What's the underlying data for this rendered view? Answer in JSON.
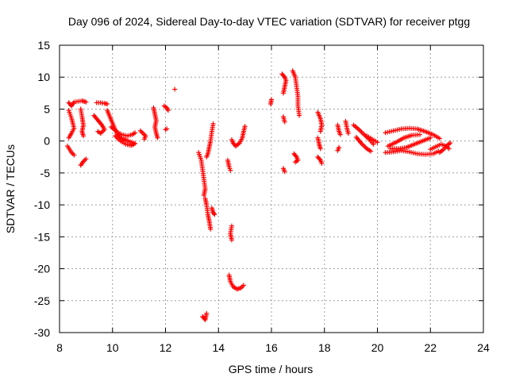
{
  "chart_data": {
    "type": "scatter",
    "title": "Day 096 of 2024, Sidereal Day-to-day VTEC variation (SDTVAR) for receiver ptgg",
    "xlabel": "GPS time / hours",
    "ylabel": "SDTVAR / TECUs",
    "xlim": [
      8,
      24
    ],
    "ylim": [
      -30,
      15
    ],
    "x_ticks": [
      "8",
      "10",
      "12",
      "14",
      "16",
      "18",
      "20",
      "22",
      "24"
    ],
    "y_ticks": [
      "15",
      "10",
      "5",
      "0",
      "-5",
      "-10",
      "-15",
      "-20",
      "-25",
      "-30"
    ],
    "grid": true,
    "marker": "+",
    "marker_color": "#ff0000",
    "series": [
      {
        "name": "SDTVAR",
        "segments": [
          [
            [
              8.35,
              6.0
            ],
            [
              8.45,
              5.5
            ],
            [
              8.55,
              6.1
            ],
            [
              8.7,
              6.2
            ],
            [
              8.85,
              6.3
            ],
            [
              9.0,
              6.1
            ]
          ],
          [
            [
              8.35,
              4.8
            ],
            [
              8.4,
              4.2
            ],
            [
              8.45,
              3.6
            ],
            [
              8.5,
              2.8
            ],
            [
              8.55,
              2.0
            ],
            [
              8.45,
              1.2
            ],
            [
              8.35,
              0.5
            ]
          ],
          [
            [
              8.3,
              -0.8
            ],
            [
              8.38,
              -1.3
            ],
            [
              8.45,
              -1.8
            ],
            [
              8.55,
              -2.2
            ]
          ],
          [
            [
              8.8,
              -3.8
            ],
            [
              8.9,
              -3.2
            ],
            [
              9.0,
              -2.8
            ]
          ],
          [
            [
              8.8,
              5.0
            ],
            [
              8.85,
              3.8
            ],
            [
              8.9,
              2.5
            ],
            [
              8.85,
              1.5
            ],
            [
              8.9,
              0.8
            ]
          ],
          [
            [
              9.4,
              6.0
            ],
            [
              9.55,
              6.0
            ],
            [
              9.7,
              5.9
            ],
            [
              9.8,
              5.8
            ]
          ],
          [
            [
              9.3,
              4.0
            ],
            [
              9.4,
              3.5
            ],
            [
              9.5,
              3.0
            ],
            [
              9.6,
              2.5
            ],
            [
              9.7,
              1.8
            ],
            [
              9.55,
              1.2
            ],
            [
              9.45,
              1.5
            ]
          ],
          [
            [
              9.8,
              4.8
            ],
            [
              9.9,
              3.8
            ],
            [
              10.0,
              2.8
            ],
            [
              10.1,
              1.8
            ],
            [
              10.2,
              1.0
            ],
            [
              10.3,
              0.5
            ],
            [
              10.45,
              0.2
            ],
            [
              10.6,
              0.0
            ],
            [
              10.8,
              -0.3
            ]
          ],
          [
            [
              9.95,
              2.2
            ],
            [
              10.15,
              1.5
            ],
            [
              10.35,
              1.0
            ],
            [
              10.55,
              0.8
            ],
            [
              10.75,
              1.0
            ],
            [
              10.85,
              1.3
            ]
          ],
          [
            [
              10.1,
              0.8
            ],
            [
              10.3,
              0.0
            ],
            [
              10.5,
              -0.5
            ],
            [
              10.7,
              -0.7
            ],
            [
              10.85,
              -0.4
            ]
          ],
          [
            [
              11.05,
              1.6
            ],
            [
              11.15,
              1.2
            ],
            [
              11.25,
              0.8
            ],
            [
              11.2,
              0.3
            ]
          ],
          [
            [
              11.55,
              5.2
            ],
            [
              11.6,
              4.2
            ],
            [
              11.65,
              3.2
            ],
            [
              11.6,
              2.2
            ],
            [
              11.65,
              1.2
            ],
            [
              11.7,
              0.5
            ]
          ],
          [
            [
              11.95,
              5.5
            ],
            [
              12.05,
              5.2
            ],
            [
              12.1,
              4.8
            ]
          ],
          [
            [
              12.0,
              1.8
            ],
            [
              12.05,
              1.9
            ]
          ],
          [
            [
              12.35,
              8.1
            ]
          ],
          [
            [
              13.25,
              -1.8
            ],
            [
              13.35,
              -3.0
            ],
            [
              13.4,
              -4.5
            ],
            [
              13.45,
              -6.0
            ],
            [
              13.5,
              -7.5
            ],
            [
              13.45,
              -8.5
            ]
          ],
          [
            [
              13.5,
              -9.0
            ],
            [
              13.55,
              -10.0
            ],
            [
              13.6,
              -11.5
            ],
            [
              13.65,
              -12.5
            ],
            [
              13.7,
              -13.8
            ]
          ],
          [
            [
              13.55,
              -2.5
            ],
            [
              13.6,
              -2.0
            ],
            [
              13.65,
              -1.0
            ],
            [
              13.7,
              0.0
            ],
            [
              13.75,
              1.5
            ],
            [
              13.8,
              2.7
            ]
          ],
          [
            [
              13.75,
              -10.5
            ],
            [
              13.8,
              -11.2
            ],
            [
              13.85,
              -11.5
            ]
          ],
          [
            [
              13.4,
              -27.5
            ],
            [
              13.5,
              -28.0
            ],
            [
              13.55,
              -27.0
            ]
          ],
          [
            [
              14.35,
              -3.0
            ],
            [
              14.4,
              -4.0
            ],
            [
              14.45,
              -4.6
            ]
          ],
          [
            [
              14.5,
              0.2
            ],
            [
              14.55,
              -0.3
            ],
            [
              14.65,
              -0.8
            ],
            [
              14.8,
              -0.3
            ],
            [
              14.9,
              0.5
            ],
            [
              14.95,
              1.5
            ],
            [
              15.0,
              2.3
            ]
          ],
          [
            [
              14.5,
              -13.3
            ],
            [
              14.45,
              -14.5
            ],
            [
              14.5,
              -15.5
            ]
          ],
          [
            [
              14.4,
              -21.0
            ],
            [
              14.45,
              -22.0
            ],
            [
              14.55,
              -22.8
            ],
            [
              14.7,
              -23.2
            ],
            [
              14.85,
              -23.0
            ],
            [
              14.95,
              -22.6
            ]
          ],
          [
            [
              16.0,
              6.5
            ],
            [
              15.97,
              5.8
            ]
          ],
          [
            [
              16.4,
              10.5
            ],
            [
              16.5,
              10.0
            ],
            [
              16.55,
              9.5
            ],
            [
              16.5,
              8.5
            ],
            [
              16.45,
              7.5
            ]
          ],
          [
            [
              16.45,
              3.8
            ],
            [
              16.5,
              3.0
            ]
          ],
          [
            [
              16.45,
              -4.3
            ],
            [
              16.5,
              -4.8
            ]
          ],
          [
            [
              16.8,
              11.0
            ],
            [
              16.9,
              10.0
            ],
            [
              16.95,
              8.5
            ],
            [
              17.0,
              7.0
            ],
            [
              17.0,
              5.5
            ],
            [
              17.05,
              4.0
            ]
          ],
          [
            [
              16.85,
              -2.0
            ],
            [
              16.95,
              -2.5
            ],
            [
              17.0,
              -3.0
            ],
            [
              16.9,
              -3.3
            ]
          ],
          [
            [
              17.75,
              4.5
            ],
            [
              17.85,
              3.5
            ],
            [
              17.9,
              2.5
            ],
            [
              17.85,
              1.5
            ]
          ],
          [
            [
              17.75,
              0.5
            ],
            [
              17.8,
              -0.5
            ],
            [
              17.85,
              -1.2
            ]
          ],
          [
            [
              17.75,
              -2.5
            ],
            [
              17.85,
              -3.0
            ],
            [
              17.9,
              -3.5
            ]
          ],
          [
            [
              18.5,
              2.5
            ],
            [
              18.55,
              1.5
            ],
            [
              18.6,
              1.0
            ]
          ],
          [
            [
              18.55,
              -1.0
            ],
            [
              18.5,
              -1.5
            ]
          ],
          [
            [
              18.8,
              3.1
            ],
            [
              18.85,
              2.0
            ],
            [
              18.9,
              1.2
            ]
          ],
          [
            [
              19.1,
              2.5
            ],
            [
              19.3,
              1.8
            ],
            [
              19.5,
              1.0
            ],
            [
              19.7,
              0.2
            ],
            [
              19.85,
              -0.5
            ]
          ],
          [
            [
              19.2,
              0.6
            ],
            [
              19.4,
              -0.4
            ],
            [
              19.6,
              -1.2
            ],
            [
              19.75,
              -1.6
            ]
          ],
          [
            [
              19.6,
              0.8
            ],
            [
              19.8,
              0.3
            ],
            [
              20.0,
              -0.2
            ]
          ],
          [
            [
              20.3,
              1.3
            ],
            [
              20.6,
              1.6
            ],
            [
              20.9,
              1.9
            ],
            [
              21.2,
              2.0
            ],
            [
              21.5,
              1.9
            ],
            [
              21.8,
              1.5
            ],
            [
              22.1,
              1.0
            ],
            [
              22.35,
              0.4
            ]
          ],
          [
            [
              20.4,
              -0.8
            ],
            [
              20.7,
              -0.2
            ],
            [
              21.0,
              0.5
            ],
            [
              21.3,
              0.9
            ],
            [
              21.6,
              1.0
            ]
          ],
          [
            [
              20.5,
              -1.2
            ],
            [
              20.8,
              -1.2
            ],
            [
              21.1,
              -1.0
            ],
            [
              21.4,
              -0.5
            ],
            [
              21.7,
              0.0
            ],
            [
              22.0,
              0.5
            ]
          ],
          [
            [
              20.3,
              -1.8
            ],
            [
              20.6,
              -1.7
            ],
            [
              20.9,
              -1.5
            ],
            [
              21.2,
              -1.7
            ],
            [
              21.5,
              -2.0
            ],
            [
              21.8,
              -2.1
            ],
            [
              22.1,
              -2.0
            ],
            [
              22.3,
              -1.6
            ]
          ],
          [
            [
              22.0,
              -1.3
            ],
            [
              22.2,
              -0.9
            ],
            [
              22.4,
              -0.5
            ],
            [
              22.6,
              -0.8
            ],
            [
              22.7,
              -1.2
            ]
          ],
          [
            [
              22.35,
              -1.8
            ],
            [
              22.5,
              -1.3
            ],
            [
              22.65,
              -0.6
            ],
            [
              22.75,
              -0.3
            ]
          ]
        ]
      }
    ]
  }
}
